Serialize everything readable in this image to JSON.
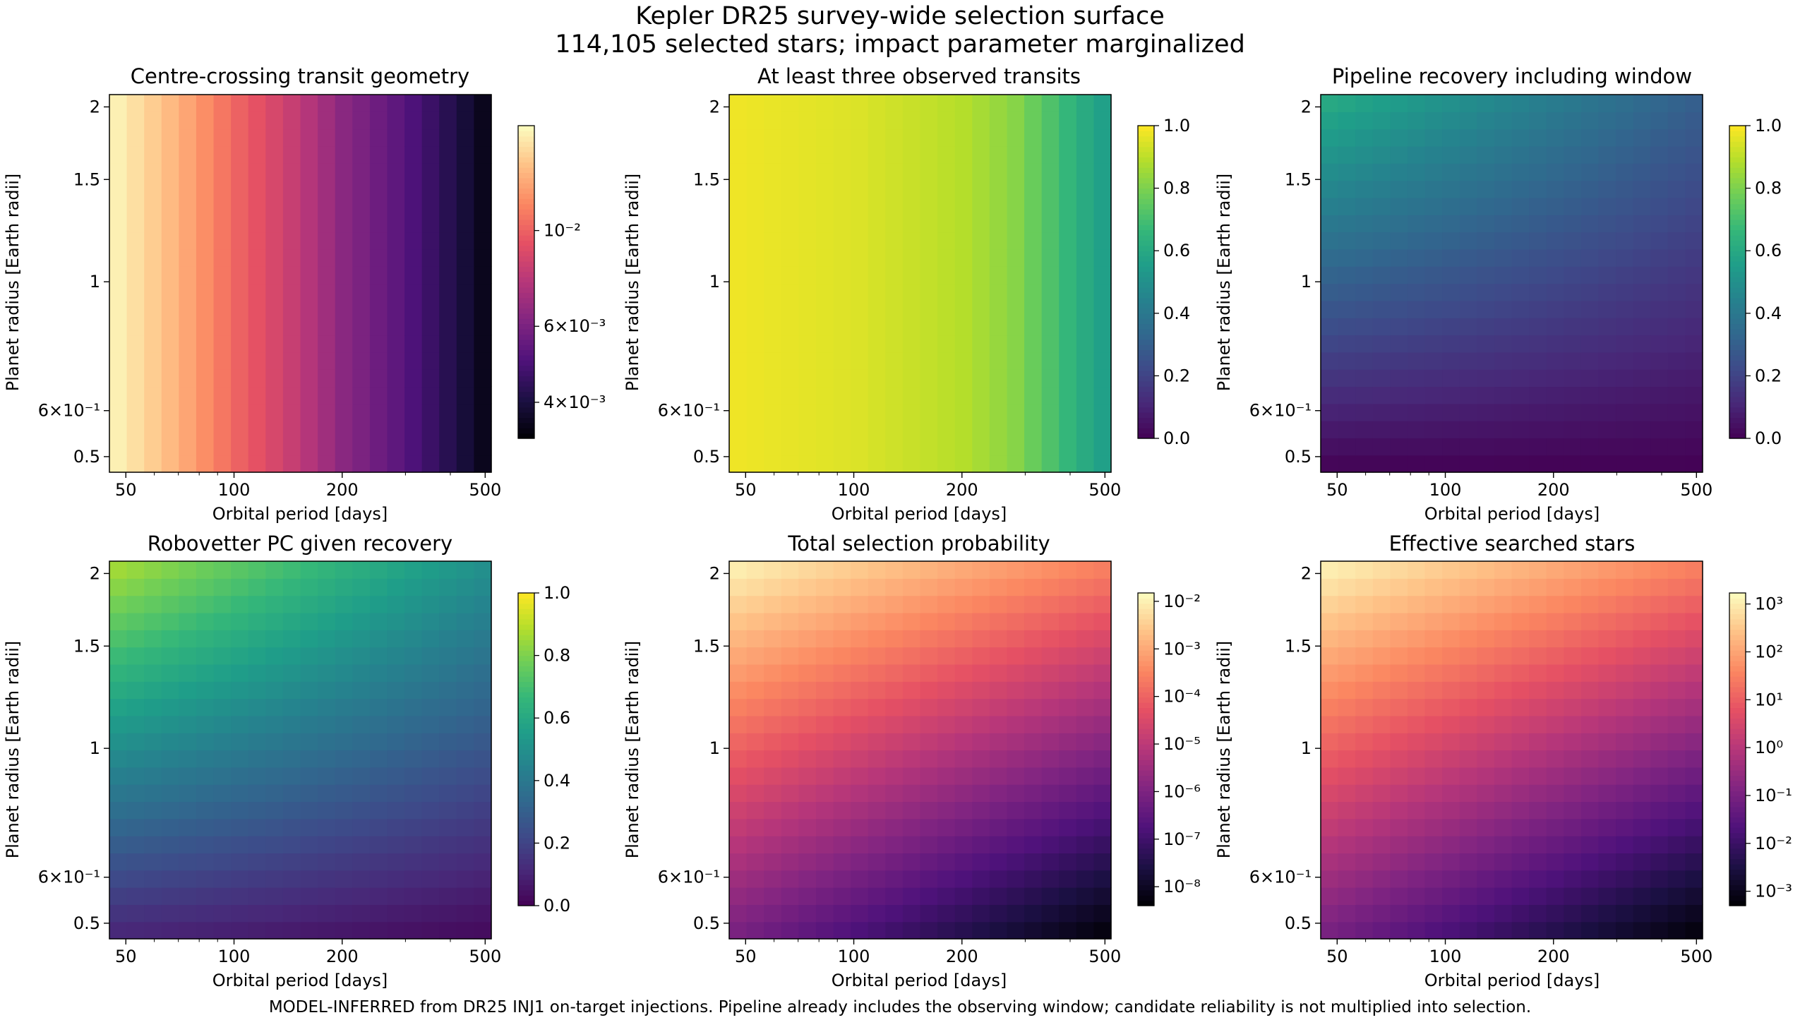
{
  "figure": {
    "title_line1": "Kepler DR25 survey-wide selection surface",
    "title_line2": "114,105 selected stars; impact parameter marginalized",
    "footnote": "MODEL-INFERRED from DR25 INJ1 on-target injections. Pipeline already includes the observing window; candidate reliability is not multiplied into selection."
  },
  "colormaps": {
    "magma": [
      "#000004",
      "#1c1044",
      "#4f127b",
      "#812581",
      "#b5367a",
      "#e55064",
      "#fb8761",
      "#fec287",
      "#fcfdbf"
    ],
    "viridis": [
      "#440154",
      "#482878",
      "#3e4a89",
      "#31688e",
      "#26828e",
      "#1f9e89",
      "#35b779",
      "#6ece58",
      "#b5de2b",
      "#fde725"
    ]
  },
  "chart_data": [
    {
      "type": "heatmap",
      "title": "Centre-crossing transit geometry",
      "xlabel": "Orbital period [days]",
      "ylabel": "Planet radius [Earth radii]",
      "x_scale": "log",
      "y_scale": "log",
      "xlim": [
        45,
        520
      ],
      "ylim": [
        0.47,
        2.1
      ],
      "x_ticks": [
        "50",
        "100",
        "200",
        "500"
      ],
      "y_ticks": [
        "0.5",
        "6×10⁻¹",
        "1",
        "1.5",
        "2"
      ],
      "colormap": "magma",
      "color_scale": "log",
      "clim": [
        0.0033,
        0.0175
      ],
      "colorbar_ticks": [
        "4×10⁻³",
        "6×10⁻³",
        "10⁻²"
      ],
      "colorbar_tick_values": [
        0.004,
        0.006,
        0.01
      ],
      "description_of_values": "depends on period only; decreasing from ~0.017 at 45 d to ~0.0034 at 520 d",
      "values_vs_period": [
        [
          45,
          0.0172
        ],
        [
          100,
          0.0102
        ],
        [
          200,
          0.0064
        ],
        [
          520,
          0.0034
        ]
      ]
    },
    {
      "type": "heatmap",
      "title": "At least three observed transits",
      "xlabel": "Orbital period [days]",
      "ylabel": "Planet radius [Earth radii]",
      "x_scale": "log",
      "y_scale": "log",
      "xlim": [
        45,
        520
      ],
      "ylim": [
        0.47,
        2.1
      ],
      "x_ticks": [
        "50",
        "100",
        "200",
        "500"
      ],
      "y_ticks": [
        "0.5",
        "6×10⁻¹",
        "1",
        "1.5",
        "2"
      ],
      "colormap": "viridis",
      "color_scale": "linear",
      "clim": [
        0.0,
        1.0
      ],
      "colorbar_ticks": [
        "0.0",
        "0.2",
        "0.4",
        "0.6",
        "0.8",
        "1.0"
      ],
      "colorbar_tick_values": [
        0,
        0.2,
        0.4,
        0.6,
        0.8,
        1.0
      ],
      "values_vs_period": [
        [
          45,
          0.98
        ],
        [
          100,
          0.95
        ],
        [
          200,
          0.89
        ],
        [
          280,
          0.82
        ],
        [
          350,
          0.72
        ],
        [
          430,
          0.62
        ],
        [
          520,
          0.54
        ]
      ]
    },
    {
      "type": "heatmap",
      "title": "Pipeline recovery including window",
      "xlabel": "Orbital period [days]",
      "ylabel": "Planet radius [Earth radii]",
      "x_scale": "log",
      "y_scale": "log",
      "xlim": [
        45,
        520
      ],
      "ylim": [
        0.47,
        2.1
      ],
      "x_ticks": [
        "50",
        "100",
        "200",
        "500"
      ],
      "y_ticks": [
        "0.5",
        "6×10⁻¹",
        "1",
        "1.5",
        "2"
      ],
      "colormap": "viridis",
      "color_scale": "linear",
      "clim": [
        0.0,
        1.0
      ],
      "colorbar_ticks": [
        "0.0",
        "0.2",
        "0.4",
        "0.6",
        "0.8",
        "1.0"
      ],
      "colorbar_tick_values": [
        0,
        0.2,
        0.4,
        0.6,
        0.8,
        1.0
      ],
      "corner_values": {
        "P45_R2.1": 0.62,
        "P520_R2.1": 0.3,
        "P45_R0.47": 0.0,
        "P520_R0.47": 0.0
      }
    },
    {
      "type": "heatmap",
      "title": "Robovetter PC given recovery",
      "xlabel": "Orbital period [days]",
      "ylabel": "Planet radius [Earth radii]",
      "x_scale": "log",
      "y_scale": "log",
      "xlim": [
        45,
        520
      ],
      "ylim": [
        0.47,
        2.1
      ],
      "x_ticks": [
        "50",
        "100",
        "200",
        "500"
      ],
      "y_ticks": [
        "0.5",
        "6×10⁻¹",
        "1",
        "1.5",
        "2"
      ],
      "colormap": "viridis",
      "color_scale": "linear",
      "clim": [
        0.0,
        1.0
      ],
      "colorbar_ticks": [
        "0.0",
        "0.2",
        "0.4",
        "0.6",
        "0.8",
        "1.0"
      ],
      "colorbar_tick_values": [
        0,
        0.2,
        0.4,
        0.6,
        0.8,
        1.0
      ],
      "corner_values": {
        "P45_R2.1": 0.88,
        "P520_R2.1": 0.5,
        "P45_R0.47": 0.1,
        "P520_R0.47": 0.02
      }
    },
    {
      "type": "heatmap",
      "title": "Total selection probability",
      "xlabel": "Orbital period [days]",
      "ylabel": "Planet radius [Earth radii]",
      "x_scale": "log",
      "y_scale": "log",
      "xlim": [
        45,
        520
      ],
      "ylim": [
        0.47,
        2.1
      ],
      "x_ticks": [
        "50",
        "100",
        "200",
        "500"
      ],
      "y_ticks": [
        "0.5",
        "6×10⁻¹",
        "1",
        "1.5",
        "2"
      ],
      "colormap": "magma",
      "color_scale": "log",
      "clim": [
        4e-09,
        0.015
      ],
      "colorbar_ticks": [
        "10⁻⁸",
        "10⁻⁷",
        "10⁻⁶",
        "10⁻⁵",
        "10⁻⁴",
        "10⁻³",
        "10⁻²"
      ],
      "colorbar_tick_values": [
        1e-08,
        1e-07,
        1e-06,
        1e-05,
        0.0001,
        0.001,
        0.01
      ],
      "corner_values": {
        "P45_R2.1": 0.012,
        "P520_R2.1": 0.0003,
        "P45_R0.47": 8e-07,
        "P520_R0.47": 4e-09
      }
    },
    {
      "type": "heatmap",
      "title": "Effective searched stars",
      "xlabel": "Orbital period [days]",
      "ylabel": "Planet radius [Earth radii]",
      "x_scale": "log",
      "y_scale": "log",
      "xlim": [
        45,
        520
      ],
      "ylim": [
        0.47,
        2.1
      ],
      "x_ticks": [
        "50",
        "100",
        "200",
        "500"
      ],
      "y_ticks": [
        "0.5",
        "6×10⁻¹",
        "1",
        "1.5",
        "2"
      ],
      "colormap": "magma",
      "color_scale": "log",
      "clim": [
        0.0005,
        1700
      ],
      "colorbar_ticks": [
        "10⁻³",
        "10⁻²",
        "10⁻¹",
        "10⁰",
        "10¹",
        "10²",
        "10³"
      ],
      "colorbar_tick_values": [
        0.001,
        0.01,
        0.1,
        1,
        10,
        100,
        1000
      ],
      "corner_values": {
        "P45_R2.1": 1400,
        "P520_R2.1": 35,
        "P45_R0.47": 0.09,
        "P520_R0.47": 0.0005
      }
    }
  ]
}
